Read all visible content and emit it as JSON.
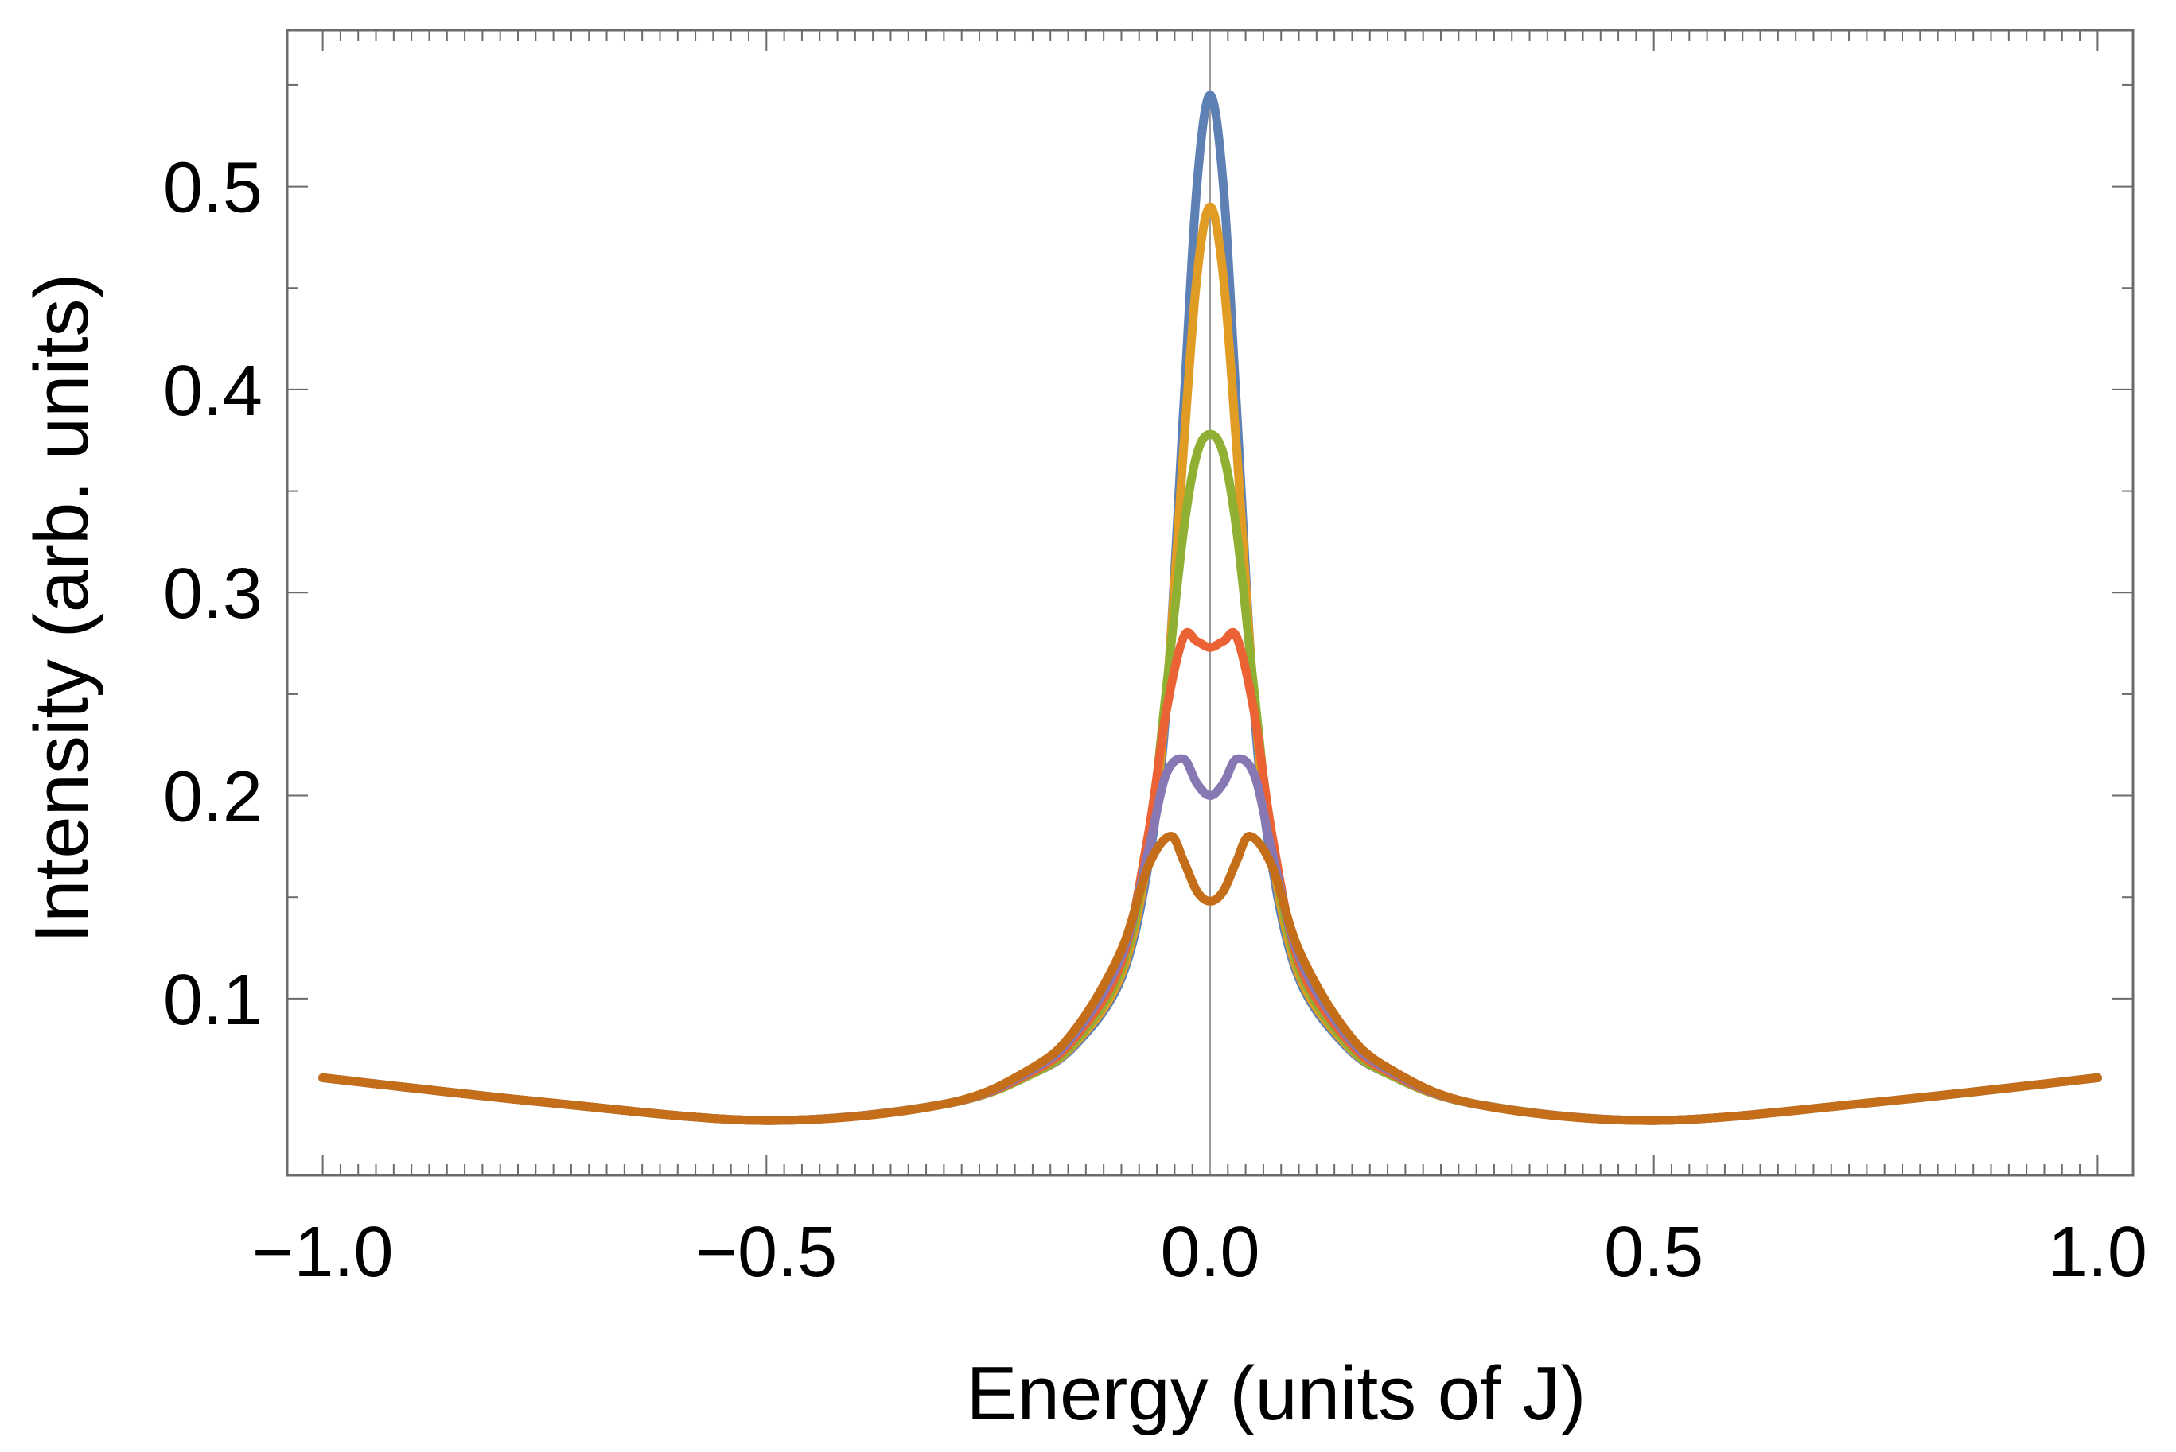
{
  "chart_data": {
    "type": "line",
    "title": "",
    "xlabel": "Energy (units of J)",
    "ylabel": "Intensity (arb. units)",
    "xlim": [
      -1.04,
      1.04
    ],
    "ylim": [
      0.013,
      0.577
    ],
    "xticks": [
      -1.0,
      -0.5,
      0.0,
      0.5,
      1.0
    ],
    "xtick_labels": [
      "−1.0",
      "−0.5",
      "0.0",
      "0.5",
      "1.0"
    ],
    "yticks": [
      0.1,
      0.2,
      0.3,
      0.4,
      0.5
    ],
    "ytick_labels": [
      "0.1",
      "0.2",
      "0.3",
      "0.4",
      "0.5"
    ],
    "grid": false,
    "frame": true,
    "vertical_line_at_x": 0.0,
    "legend": "none",
    "series": [
      {
        "color": "#5e81b5",
        "x": [
          -1.0,
          -0.75,
          -0.5,
          -0.3,
          -0.2,
          -0.15,
          -0.1,
          -0.07,
          -0.05,
          -0.03,
          -0.015,
          0.0,
          0.015,
          0.03,
          0.05,
          0.07,
          0.1,
          0.15,
          0.2,
          0.3,
          0.5,
          0.75,
          1.0
        ],
        "y": [
          0.061,
          0.049,
          0.04,
          0.048,
          0.063,
          0.078,
          0.11,
          0.165,
          0.24,
          0.39,
          0.5,
          0.545,
          0.5,
          0.39,
          0.24,
          0.165,
          0.11,
          0.078,
          0.063,
          0.048,
          0.04,
          0.049,
          0.061
        ]
      },
      {
        "color": "#e19c24",
        "x": [
          -1.0,
          -0.75,
          -0.5,
          -0.3,
          -0.2,
          -0.15,
          -0.1,
          -0.07,
          -0.05,
          -0.03,
          -0.015,
          0.0,
          0.015,
          0.03,
          0.05,
          0.07,
          0.1,
          0.15,
          0.2,
          0.3,
          0.5,
          0.75,
          1.0
        ],
        "y": [
          0.061,
          0.049,
          0.04,
          0.048,
          0.063,
          0.079,
          0.112,
          0.17,
          0.245,
          0.37,
          0.455,
          0.49,
          0.455,
          0.37,
          0.245,
          0.17,
          0.112,
          0.079,
          0.063,
          0.048,
          0.04,
          0.049,
          0.061
        ]
      },
      {
        "color": "#8fb032",
        "x": [
          -1.0,
          -0.75,
          -0.5,
          -0.3,
          -0.2,
          -0.15,
          -0.1,
          -0.07,
          -0.05,
          -0.03,
          -0.015,
          0.0,
          0.015,
          0.03,
          0.05,
          0.07,
          0.1,
          0.15,
          0.2,
          0.3,
          0.5,
          0.75,
          1.0
        ],
        "y": [
          0.061,
          0.049,
          0.04,
          0.048,
          0.063,
          0.08,
          0.115,
          0.175,
          0.25,
          0.33,
          0.368,
          0.378,
          0.368,
          0.33,
          0.25,
          0.175,
          0.115,
          0.08,
          0.063,
          0.048,
          0.04,
          0.049,
          0.061
        ]
      },
      {
        "color": "#eb6235",
        "x": [
          -1.0,
          -0.75,
          -0.5,
          -0.3,
          -0.2,
          -0.15,
          -0.1,
          -0.07,
          -0.05,
          -0.03,
          -0.015,
          0.0,
          0.015,
          0.03,
          0.05,
          0.07,
          0.1,
          0.15,
          0.2,
          0.3,
          0.5,
          0.75,
          1.0
        ],
        "y": [
          0.061,
          0.049,
          0.04,
          0.048,
          0.064,
          0.082,
          0.118,
          0.18,
          0.24,
          0.278,
          0.276,
          0.273,
          0.276,
          0.278,
          0.24,
          0.18,
          0.118,
          0.082,
          0.064,
          0.048,
          0.04,
          0.049,
          0.061
        ]
      },
      {
        "color": "#8778b3",
        "x": [
          -1.0,
          -0.75,
          -0.5,
          -0.3,
          -0.2,
          -0.15,
          -0.1,
          -0.07,
          -0.05,
          -0.03,
          -0.015,
          0.0,
          0.015,
          0.03,
          0.05,
          0.07,
          0.1,
          0.15,
          0.2,
          0.3,
          0.5,
          0.75,
          1.0
        ],
        "y": [
          0.061,
          0.049,
          0.04,
          0.048,
          0.065,
          0.084,
          0.121,
          0.172,
          0.21,
          0.218,
          0.206,
          0.2,
          0.206,
          0.218,
          0.21,
          0.172,
          0.121,
          0.084,
          0.065,
          0.048,
          0.04,
          0.049,
          0.061
        ]
      },
      {
        "color": "#c56e1a",
        "x": [
          -1.0,
          -0.75,
          -0.5,
          -0.3,
          -0.2,
          -0.15,
          -0.1,
          -0.07,
          -0.045,
          -0.03,
          -0.015,
          0.0,
          0.015,
          0.03,
          0.045,
          0.07,
          0.1,
          0.15,
          0.2,
          0.3,
          0.5,
          0.75,
          1.0
        ],
        "y": [
          0.061,
          0.049,
          0.04,
          0.048,
          0.066,
          0.086,
          0.124,
          0.165,
          0.18,
          0.168,
          0.153,
          0.148,
          0.153,
          0.168,
          0.18,
          0.165,
          0.124,
          0.086,
          0.066,
          0.048,
          0.04,
          0.049,
          0.061
        ]
      }
    ]
  }
}
